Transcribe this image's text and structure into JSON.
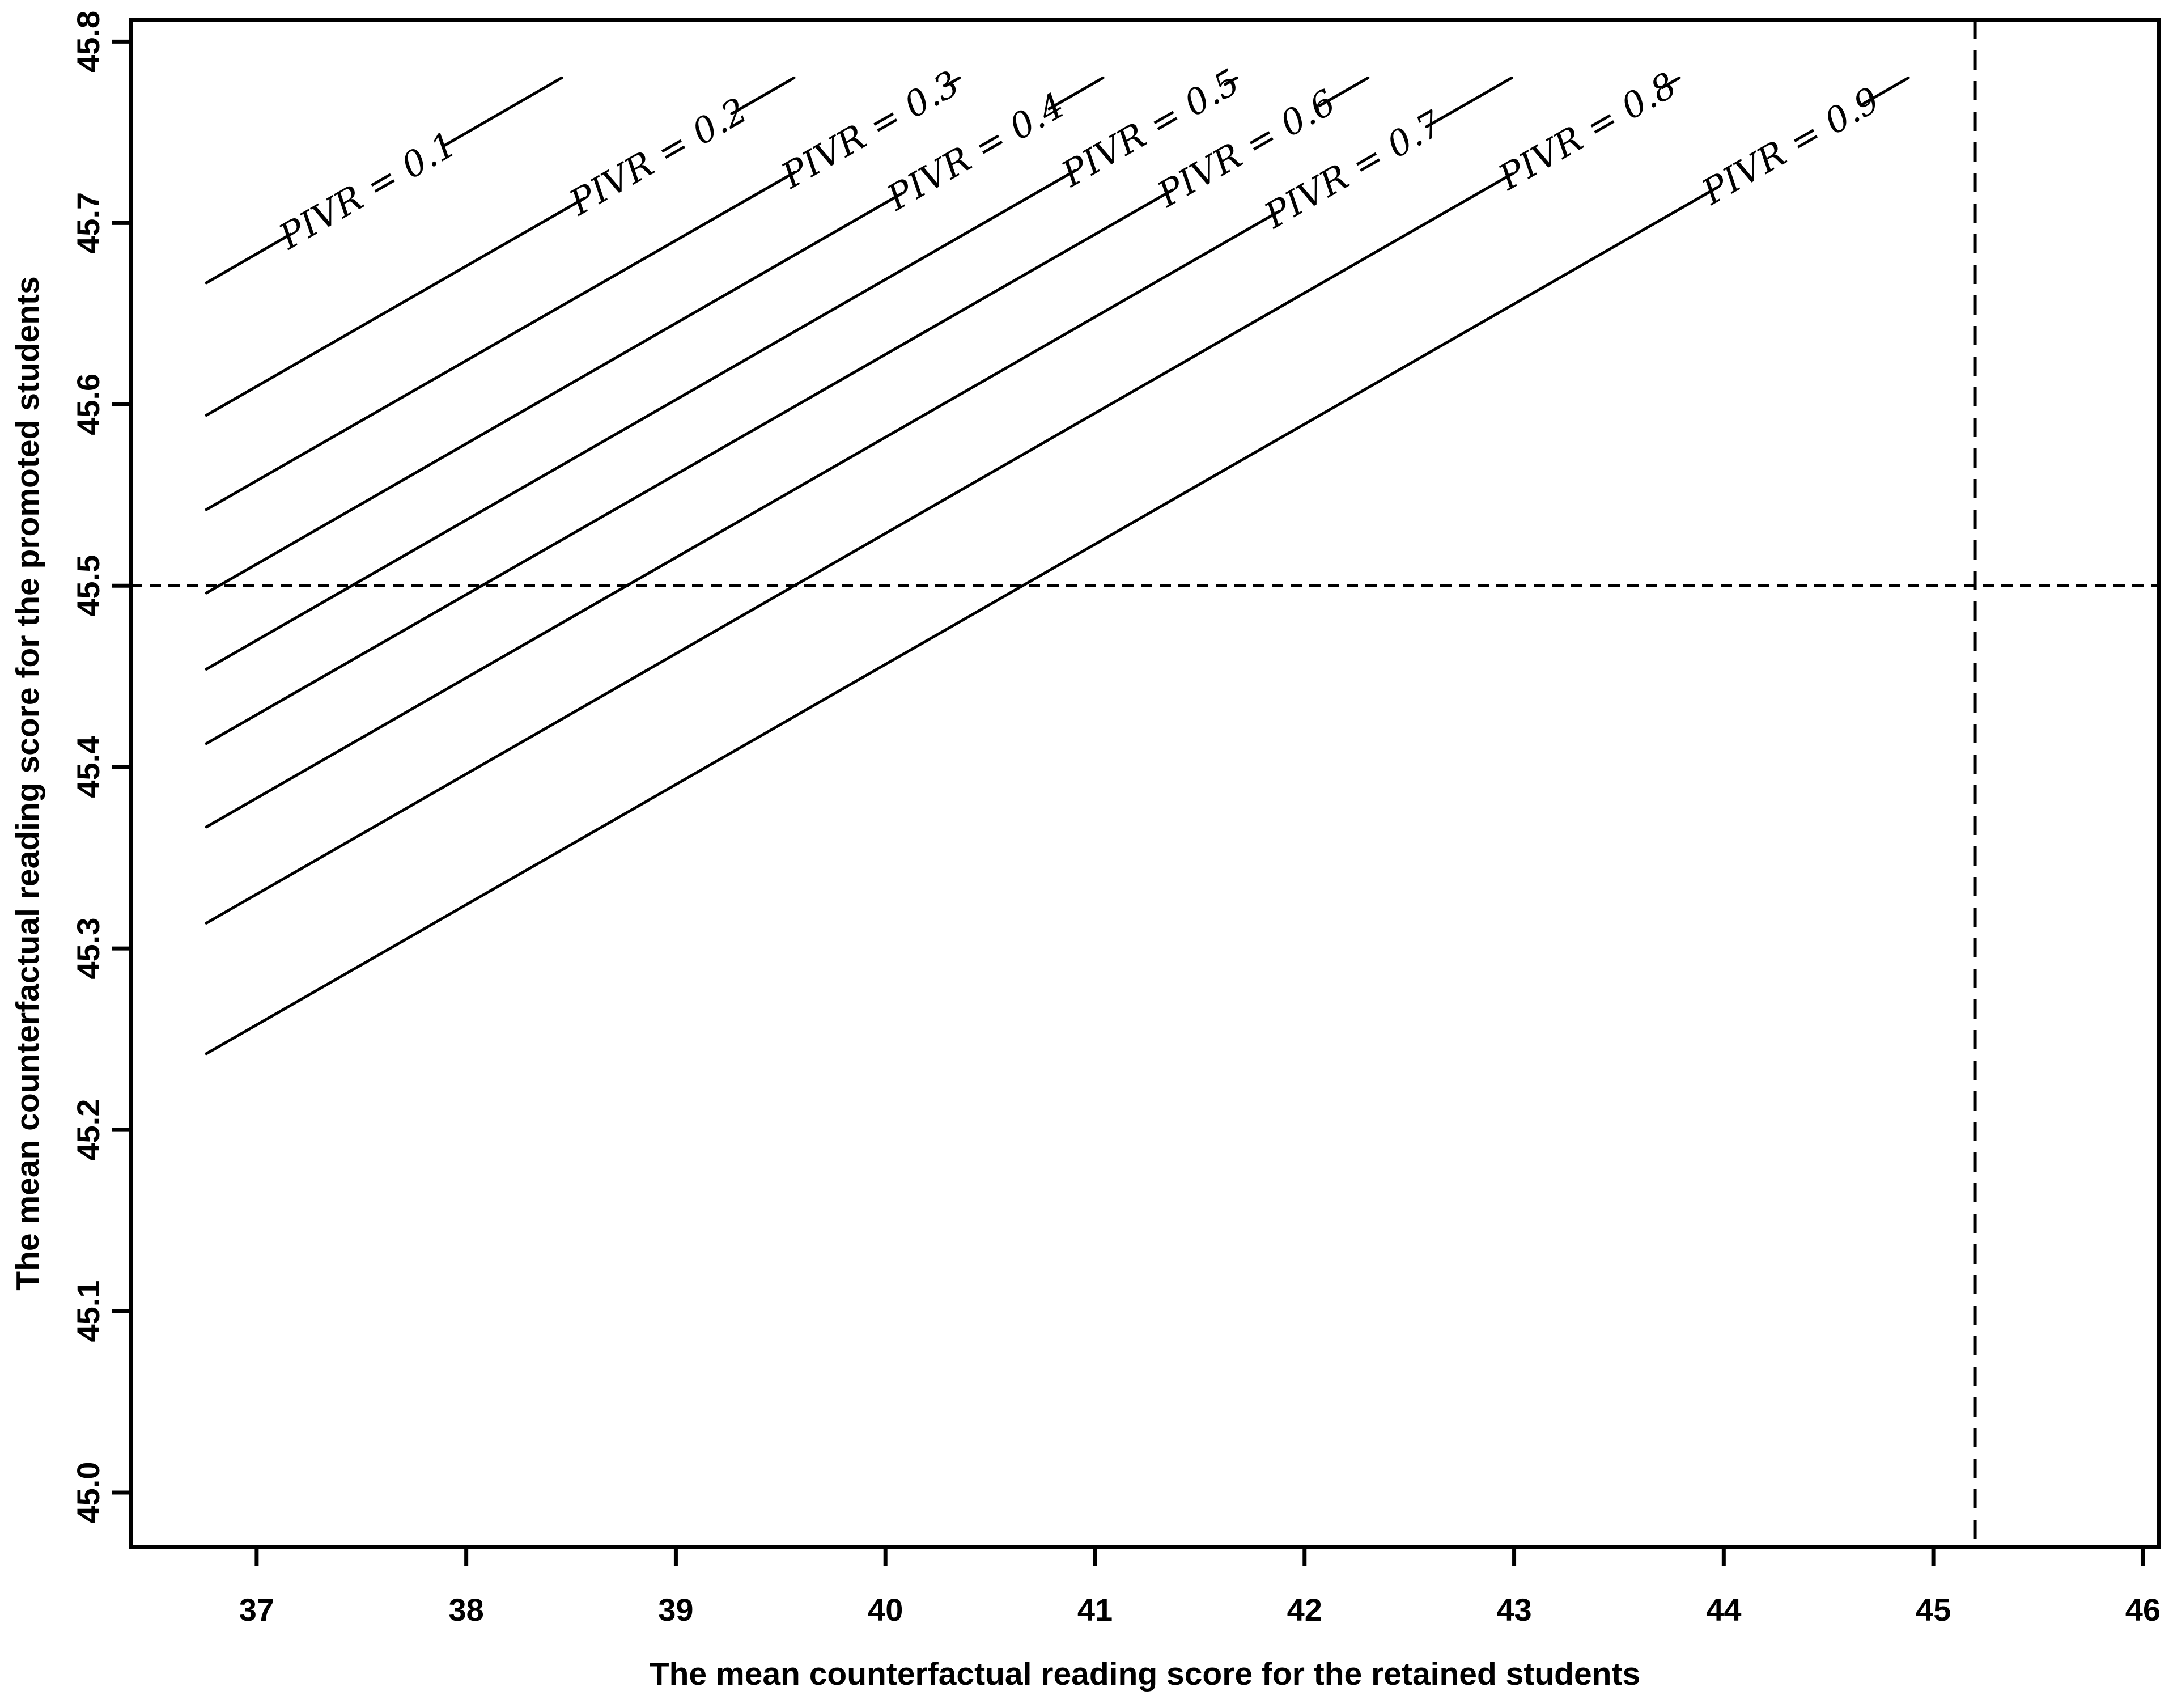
{
  "figure": {
    "background_color": "#ffffff",
    "ink_color": "#000000"
  },
  "chart_data": {
    "type": "line",
    "subtype": "contour-lines-of-PIVR",
    "title": "",
    "xlabel": "The mean counterfactual reading score for the retained students",
    "ylabel": "The mean counterfactual reading score for the promoted students",
    "xlim": [
      36.4,
      46.076
    ],
    "ylim": [
      44.97,
      45.812
    ],
    "grid": false,
    "legend": null,
    "x_ticks": [
      {
        "value": 37,
        "label": "37"
      },
      {
        "value": 38,
        "label": "38"
      },
      {
        "value": 39,
        "label": "39"
      },
      {
        "value": 40,
        "label": "40"
      },
      {
        "value": 41,
        "label": "41"
      },
      {
        "value": 42,
        "label": "42"
      },
      {
        "value": 43,
        "label": "43"
      },
      {
        "value": 44,
        "label": "44"
      },
      {
        "value": 45,
        "label": "45"
      },
      {
        "value": 46,
        "label": "46"
      }
    ],
    "y_ticks": [
      {
        "value": 45.0,
        "label": "45.0"
      },
      {
        "value": 45.1,
        "label": "45.1"
      },
      {
        "value": 45.2,
        "label": "45.2"
      },
      {
        "value": 45.3,
        "label": "45.3"
      },
      {
        "value": 45.4,
        "label": "45.4"
      },
      {
        "value": 45.5,
        "label": "45.5"
      },
      {
        "value": 45.6,
        "label": "45.6"
      },
      {
        "value": 45.7,
        "label": "45.7"
      },
      {
        "value": 45.8,
        "label": "45.8"
      }
    ],
    "reference_lines": {
      "horizontal_y": 45.5,
      "vertical_x": 45.2,
      "style": "dashed"
    },
    "contour_lines": [
      {
        "pivr": 0.1,
        "label": "PIVR = 0.1",
        "x1": 36.76,
        "y1": 45.667,
        "x2": 38.455,
        "y2": 45.78,
        "label_gap_dx": [
          207,
          478
        ]
      },
      {
        "pivr": 0.2,
        "label": "PIVR = 0.2",
        "x1": 36.76,
        "y1": 45.594,
        "x2": 39.564,
        "y2": 45.78,
        "label_gap_dx": [
          110,
          370
        ]
      },
      {
        "pivr": 0.3,
        "label": "PIVR = 0.3",
        "x1": 36.76,
        "y1": 45.542,
        "x2": 40.353,
        "y2": 45.78,
        "label_gap_dx": [
          25,
          290
        ]
      },
      {
        "pivr": 0.4,
        "label": "PIVR = 0.4",
        "x1": 36.76,
        "y1": 45.496,
        "x2": 41.038,
        "y2": 45.78,
        "label_gap_dx": [
          95,
          355
        ]
      },
      {
        "pivr": 0.5,
        "label": "PIVR = 0.5",
        "x1": 36.76,
        "y1": 45.454,
        "x2": 41.676,
        "y2": 45.78,
        "label_gap_dx": [
          20,
          285
        ]
      },
      {
        "pivr": 0.6,
        "label": "PIVR = 0.6",
        "x1": 36.76,
        "y1": 45.413,
        "x2": 42.303,
        "y2": 45.78,
        "label_gap_dx": [
          85,
          345
        ]
      },
      {
        "pivr": 0.7,
        "label": "PIVR = 0.7",
        "x1": 36.76,
        "y1": 45.367,
        "x2": 42.988,
        "y2": 45.78,
        "label_gap_dx": [
          150,
          410
        ]
      },
      {
        "pivr": 0.8,
        "label": "PIVR = 0.8",
        "x1": 36.76,
        "y1": 45.314,
        "x2": 43.788,
        "y2": 45.78,
        "label_gap_dx": [
          30,
          295
        ]
      },
      {
        "pivr": 0.9,
        "label": "PIVR = 0.9",
        "x1": 36.76,
        "y1": 45.242,
        "x2": 44.881,
        "y2": 45.78,
        "label_gap_dx": [
          79,
          337
        ]
      }
    ]
  }
}
